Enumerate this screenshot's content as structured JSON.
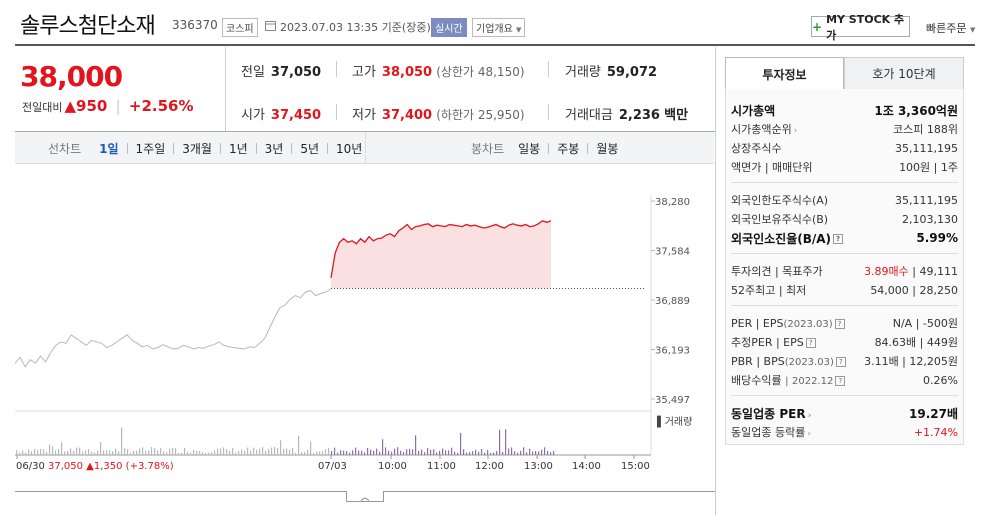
{
  "header": {
    "title": "솔루스첨단소재",
    "code": "336370",
    "market": "코스피",
    "datetime": "2023.07.03 13:35 기준(장중)",
    "realtime": "실시간",
    "overview": "기업개요",
    "mystock": "MY STOCK 추가",
    "quick_order": "빠른주문"
  },
  "price": {
    "current": "38,000",
    "change_label": "전일대비",
    "change": "950",
    "change_pct": "+2.56%"
  },
  "stats": {
    "prev_label": "전일",
    "prev": "37,050",
    "high_label": "고가",
    "high": "38,050",
    "upper_limit": "(상한가 48,150)",
    "volume_label": "거래량",
    "volume": "59,072",
    "open_label": "시가",
    "open": "37,450",
    "low_label": "저가",
    "low": "37,400",
    "lower_limit": "(하한가 25,950)",
    "amount_label": "거래대금",
    "amount": "2,236",
    "amount_unit": "백만"
  },
  "period_bar": {
    "line_label": "선차트",
    "periods": [
      "1일",
      "1주일",
      "3개월",
      "1년",
      "3년",
      "5년",
      "10년"
    ],
    "active": "1일",
    "candle_label": "봉차트",
    "candles": [
      "일봉",
      "주봉",
      "월봉"
    ]
  },
  "chart_data": {
    "type": "line",
    "y_ticks": [
      "38,280",
      "37,584",
      "36,889",
      "36,193",
      "35,497"
    ],
    "ylim": [
      35497,
      38280
    ],
    "x_ticks": [
      "06/30",
      "07/03",
      "10:00",
      "11:00",
      "12:00",
      "13:00",
      "14:00",
      "15:00"
    ],
    "prev_close": 37050,
    "prev_day_label": "06/30",
    "prev_day_close": "37,050",
    "prev_day_change": "1,350",
    "prev_day_change_pct": "(+3.78%)",
    "volume_label": "거래량",
    "prev_day_series": [
      36000,
      36080,
      35950,
      36050,
      36000,
      36100,
      36020,
      36150,
      36250,
      36300,
      36280,
      36400,
      36350,
      36300,
      36250,
      36320,
      36300,
      36280,
      36220,
      36250,
      36300,
      36350,
      36400,
      36320,
      36280,
      36230,
      36250,
      36200,
      36220,
      36260,
      36230,
      36200,
      36210,
      36250,
      36230,
      36200,
      36220,
      36210,
      36240,
      36260,
      36300,
      36250,
      36230,
      36220,
      36210,
      36200,
      36230,
      36220,
      36280,
      36350,
      36500,
      36650,
      36780,
      36820,
      36900,
      36950,
      36920,
      37000,
      37020,
      36950,
      36980,
      37000,
      37050
    ],
    "today_series": [
      37200,
      37550,
      37700,
      37750,
      37700,
      37720,
      37680,
      37750,
      37700,
      37780,
      37720,
      37750,
      37760,
      37800,
      37820,
      37780,
      37860,
      37900,
      37950,
      37880,
      37920,
      37930,
      37950,
      37960,
      37920,
      37940,
      37930,
      37920,
      37950,
      37940,
      37930,
      37920,
      37950,
      37930,
      37940,
      37920,
      37900,
      37910,
      37930,
      37950,
      37920,
      37900,
      37940,
      37960,
      37940,
      37930,
      37950,
      37920,
      37930,
      37960,
      38000,
      37980,
      38000
    ]
  },
  "right_panel": {
    "tab_invest": "투자정보",
    "tab_orderbook": "호가 10단계",
    "rows_a": [
      {
        "k": "시가총액",
        "v": "1조 3,360억원",
        "bold": true
      },
      {
        "k": "시가총액순위",
        "v": "코스피 188위"
      },
      {
        "k": "상장주식수",
        "v": "35,111,195"
      },
      {
        "k": "액면가 | 매매단위",
        "v": "100원 | 1주"
      }
    ],
    "rows_b": [
      {
        "k": "외국인한도주식수(A)",
        "v": "35,111,195"
      },
      {
        "k": "외국인보유주식수(B)",
        "v": "2,103,130"
      },
      {
        "k": "외국인소진율(B/A)",
        "v": "5.99%",
        "bold": true
      }
    ],
    "rows_c_opinion_k": "투자의견 | 목표주가",
    "rows_c_opinion_v1": "3.89매수",
    "rows_c_opinion_v2": "| 49,111",
    "rows_c_52_k": "52주최고 | 최저",
    "rows_c_52_v": "54,000 | 28,250",
    "per_k": "PER | EPS",
    "per_sub": "(2023.03)",
    "per_v": "N/A | -500원",
    "est_per_k": "추정PER | EPS",
    "est_per_v": "84.63배 | 449원",
    "pbr_k": "PBR | BPS",
    "pbr_sub": "(2023.03)",
    "pbr_v": "3.11배 | 12,205원",
    "div_k": "배당수익률",
    "div_sub": "2022.12",
    "div_v": "0.26%",
    "industry_per_k": "동일업종 PER",
    "industry_per_v": "19.27배",
    "industry_chg_k": "동일업종 등락률",
    "industry_chg_v": "+1.74%"
  }
}
